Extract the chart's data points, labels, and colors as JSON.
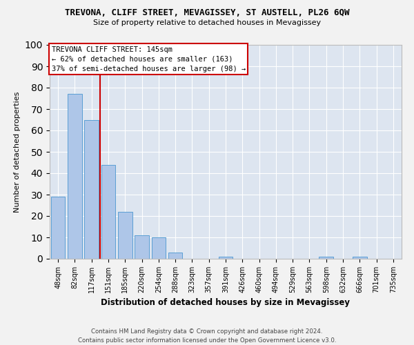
{
  "title": "TREVONA, CLIFF STREET, MEVAGISSEY, ST AUSTELL, PL26 6QW",
  "subtitle": "Size of property relative to detached houses in Mevagissey",
  "xlabel": "Distribution of detached houses by size in Mevagissey",
  "ylabel": "Number of detached properties",
  "categories": [
    "48sqm",
    "82sqm",
    "117sqm",
    "151sqm",
    "185sqm",
    "220sqm",
    "254sqm",
    "288sqm",
    "323sqm",
    "357sqm",
    "391sqm",
    "426sqm",
    "460sqm",
    "494sqm",
    "529sqm",
    "563sqm",
    "598sqm",
    "632sqm",
    "666sqm",
    "701sqm",
    "735sqm"
  ],
  "values": [
    29,
    77,
    65,
    44,
    22,
    11,
    10,
    3,
    0,
    0,
    1,
    0,
    0,
    0,
    0,
    0,
    1,
    0,
    1,
    0,
    0
  ],
  "bar_color": "#aec6e8",
  "bar_edge_color": "#5a9fd4",
  "marker_color": "#cc0000",
  "annotation_title": "TREVONA CLIFF STREET: 145sqm",
  "annotation_line1": "← 62% of detached houses are smaller (163)",
  "annotation_line2": "37% of semi-detached houses are larger (98) →",
  "annotation_box_color": "#ffffff",
  "annotation_box_edge": "#cc0000",
  "background_color": "#dde5f0",
  "fig_background": "#f2f2f2",
  "ylim": [
    0,
    100
  ],
  "footer_line1": "Contains HM Land Registry data © Crown copyright and database right 2024.",
  "footer_line2": "Contains public sector information licensed under the Open Government Licence v3.0."
}
